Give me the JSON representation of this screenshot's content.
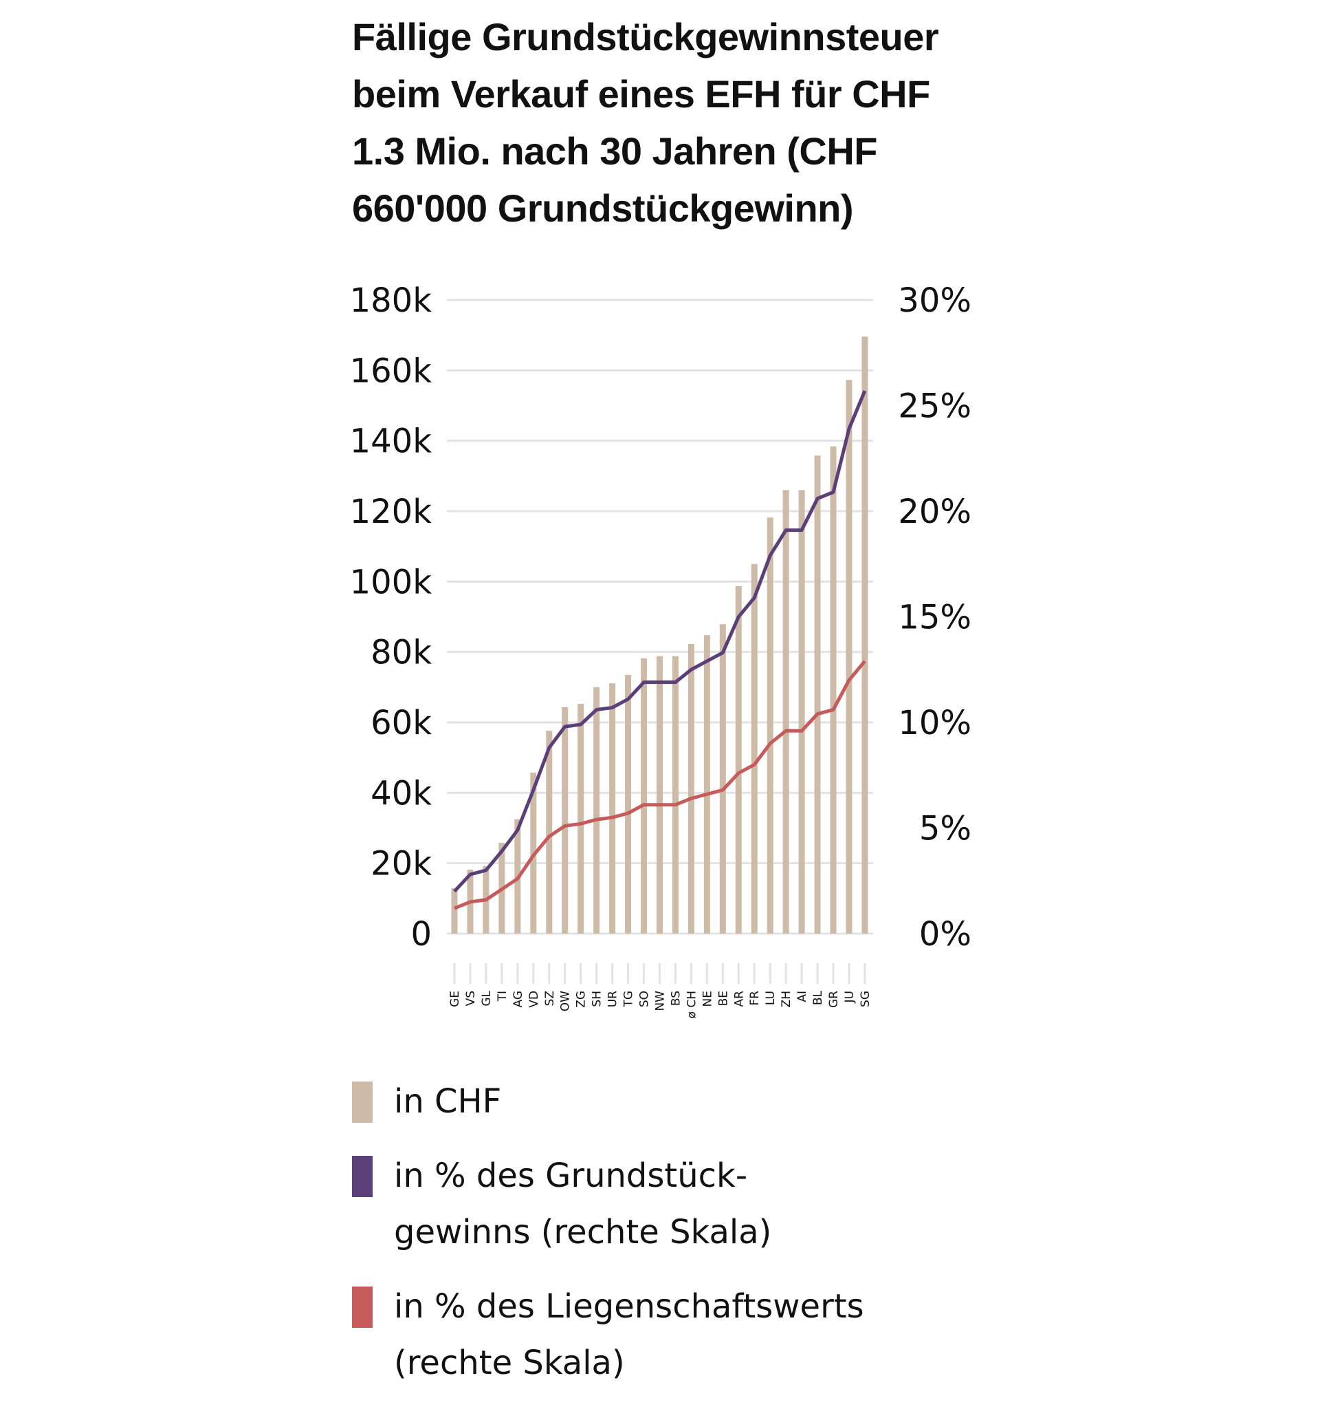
{
  "title": "Fällige Grundstückgewinnsteuer beim Verkauf eines EFH für CHF 1.3 Mio. nach 30 Jahren (CHF 660'000 Grundstückgewinn)",
  "colors": {
    "bars": "#cdbba8",
    "line_grundstueckgewinn": "#5b3f78",
    "line_liegenschaftswert": "#c65b5b",
    "gridline": "#e3e3e3",
    "tickmark": "#e3e3e3"
  },
  "legend": [
    {
      "label": "in CHF",
      "color": "#cdbba8",
      "lines": [
        "in CHF"
      ]
    },
    {
      "label": "in % des Grundstückgewinns (rechte Skala)",
      "color": "#5b3f78",
      "lines": [
        "in % des Grundstück-",
        "gewinns (rechte Skala)"
      ]
    },
    {
      "label": "in % des Liegenschaftswerts (rechte Skala)",
      "color": "#c65b5b",
      "lines": [
        "in % des Liegenschaftswerts",
        "(rechte Skala)"
      ]
    }
  ],
  "chart_data": {
    "type": "bar",
    "title": "Fällige Grundstückgewinnsteuer beim Verkauf eines EFH für CHF 1.3 Mio. nach 30 Jahren (CHF 660'000 Grundstückgewinn)",
    "xlabel": "",
    "ylabel": "",
    "categories": [
      "GE",
      "VS",
      "GL",
      "TI",
      "AG",
      "VD",
      "SZ",
      "OW",
      "ZG",
      "SH",
      "UR",
      "TG",
      "SO",
      "NW",
      "BS",
      "ø CH",
      "NE",
      "BE",
      "AR",
      "FR",
      "LU",
      "ZH",
      "AI",
      "BL",
      "GR",
      "JU",
      "SG"
    ],
    "series": [
      {
        "name": "in CHF",
        "type": "bar",
        "axis": "left",
        "values": [
          12900,
          18200,
          19200,
          25800,
          32500,
          45700,
          57600,
          64300,
          65300,
          70000,
          71100,
          73500,
          78200,
          78800,
          78800,
          82300,
          84800,
          87900,
          98700,
          105000,
          118200,
          126000,
          126000,
          135800,
          138400,
          157300,
          169600
        ]
      },
      {
        "name": "in % des Grundstückgewinns (rechte Skala)",
        "type": "line",
        "axis": "right",
        "values": [
          2.0,
          2.8,
          3.0,
          3.9,
          4.9,
          6.8,
          8.8,
          9.8,
          9.9,
          10.6,
          10.7,
          11.1,
          11.9,
          11.9,
          11.9,
          12.5,
          12.9,
          13.3,
          15.0,
          15.9,
          17.9,
          19.1,
          19.1,
          20.6,
          20.9,
          23.9,
          25.7
        ]
      },
      {
        "name": "in % des Liegenschaftswerts (rechte Skala)",
        "type": "line",
        "axis": "right",
        "values": [
          1.2,
          1.5,
          1.6,
          2.1,
          2.6,
          3.7,
          4.6,
          5.1,
          5.2,
          5.4,
          5.5,
          5.7,
          6.1,
          6.1,
          6.1,
          6.4,
          6.6,
          6.8,
          7.6,
          8.0,
          9.0,
          9.6,
          9.6,
          10.4,
          10.6,
          12.0,
          12.9
        ]
      }
    ],
    "ylim": [
      0,
      180000
    ],
    "y2lim": [
      0,
      30
    ],
    "yticks": [
      "0",
      "20k",
      "40k",
      "60k",
      "80k",
      "100k",
      "120k",
      "140k",
      "160k",
      "180k"
    ],
    "y2ticks": [
      "0%",
      "5%",
      "10%",
      "15%",
      "20%",
      "25%",
      "30%"
    ],
    "grid": true,
    "legend_position": "bottom"
  }
}
